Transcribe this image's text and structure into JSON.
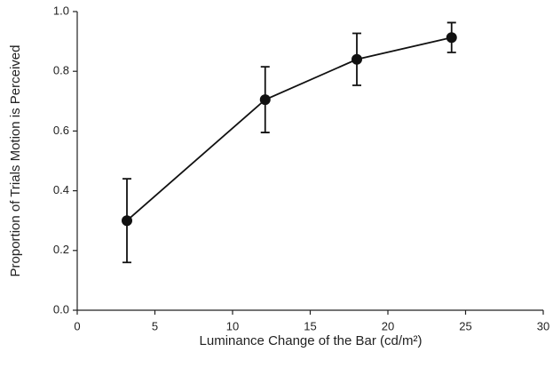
{
  "chart_data": {
    "type": "line",
    "x_label": "Luminance Change of the Bar (cd/m²)",
    "y_label": "Proportion of Trials Motion is Perceived",
    "x": [
      3.2,
      12.1,
      18.0,
      24.1
    ],
    "series": [
      {
        "color": "#111111",
        "values": [
          0.3,
          0.705,
          0.84,
          0.913
        ],
        "errors": [
          0.14,
          0.11,
          0.087,
          0.05
        ]
      }
    ],
    "xlim": [
      0,
      30
    ],
    "xticks": [
      0,
      5,
      10,
      15,
      20,
      25,
      30
    ],
    "ylim": [
      0,
      1
    ],
    "yticks": [
      {
        "value": 0,
        "label": "0.0"
      },
      0.2,
      0.4,
      0.6,
      0.8,
      {
        "value": 1,
        "label": "1.0"
      }
    ],
    "grid": false
  }
}
